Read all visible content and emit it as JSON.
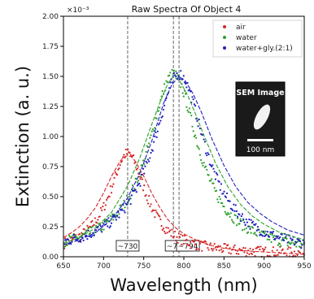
{
  "chart_data": {
    "type": "scatter",
    "title": "Raw Spectra Of Object 4",
    "xlabel": "Wavelength (nm)",
    "ylabel": "Extinction (a. u.)",
    "xlim": [
      650,
      950
    ],
    "ylim": [
      0,
      2.0
    ],
    "x_ticks": [
      650,
      700,
      750,
      800,
      850,
      900,
      950
    ],
    "y_ticks": [
      "0.00",
      "0.25",
      "0.50",
      "0.75",
      "1.00",
      "1.25",
      "1.50",
      "1.75",
      "2.00"
    ],
    "y_multiplier": "×10⁻³",
    "grid": false,
    "legend_position": "top-right",
    "series": [
      {
        "name": "air",
        "color": "#d62728",
        "peak": 730,
        "amplitude": 0.84,
        "gamma": 28,
        "baseline": 0.0,
        "fit": [
          [
            650,
            0.16
          ],
          [
            660,
            0.2
          ],
          [
            670,
            0.25
          ],
          [
            680,
            0.32
          ],
          [
            690,
            0.41
          ],
          [
            700,
            0.53
          ],
          [
            710,
            0.67
          ],
          [
            720,
            0.79
          ],
          [
            725,
            0.83
          ],
          [
            730,
            0.84
          ],
          [
            735,
            0.83
          ],
          [
            740,
            0.79
          ],
          [
            750,
            0.67
          ],
          [
            760,
            0.53
          ],
          [
            770,
            0.41
          ],
          [
            780,
            0.31
          ],
          [
            790,
            0.24
          ],
          [
            800,
            0.19
          ],
          [
            815,
            0.14
          ],
          [
            830,
            0.1
          ],
          [
            850,
            0.07
          ],
          [
            875,
            0.05
          ],
          [
            900,
            0.04
          ],
          [
            925,
            0.03
          ],
          [
            950,
            0.02
          ]
        ]
      },
      {
        "name": "water",
        "color": "#2ca02c",
        "peak": 787,
        "amplitude": 1.5,
        "gamma": 38,
        "baseline": 0.0,
        "fit": [
          [
            650,
            0.11
          ],
          [
            670,
            0.16
          ],
          [
            690,
            0.24
          ],
          [
            710,
            0.37
          ],
          [
            730,
            0.59
          ],
          [
            745,
            0.82
          ],
          [
            760,
            1.1
          ],
          [
            770,
            1.28
          ],
          [
            780,
            1.44
          ],
          [
            787,
            1.5
          ],
          [
            795,
            1.46
          ],
          [
            805,
            1.34
          ],
          [
            815,
            1.18
          ],
          [
            825,
            1.01
          ],
          [
            840,
            0.77
          ],
          [
            855,
            0.58
          ],
          [
            870,
            0.44
          ],
          [
            885,
            0.34
          ],
          [
            900,
            0.27
          ],
          [
            920,
            0.2
          ],
          [
            935,
            0.17
          ],
          [
            950,
            0.14
          ]
        ]
      },
      {
        "name": "water+gly.(2:1)",
        "color": "#1f1fbf",
        "peak": 794,
        "amplitude": 1.5,
        "gamma": 40,
        "baseline": 0.0,
        "fit": [
          [
            650,
            0.1
          ],
          [
            670,
            0.14
          ],
          [
            690,
            0.2
          ],
          [
            710,
            0.31
          ],
          [
            730,
            0.49
          ],
          [
            745,
            0.69
          ],
          [
            760,
            0.96
          ],
          [
            775,
            1.28
          ],
          [
            785,
            1.43
          ],
          [
            794,
            1.5
          ],
          [
            802,
            1.46
          ],
          [
            812,
            1.35
          ],
          [
            822,
            1.2
          ],
          [
            835,
            0.98
          ],
          [
            850,
            0.76
          ],
          [
            865,
            0.58
          ],
          [
            880,
            0.45
          ],
          [
            895,
            0.36
          ],
          [
            910,
            0.29
          ],
          [
            930,
            0.22
          ],
          [
            950,
            0.18
          ]
        ]
      }
    ],
    "peak_markers": [
      {
        "x": 730,
        "label": "~730"
      },
      {
        "x": 787,
        "label": "~787"
      },
      {
        "x": 794,
        "label": "~794"
      }
    ],
    "inset": {
      "title": "SEM Image",
      "scale_label": "100 nm"
    }
  }
}
